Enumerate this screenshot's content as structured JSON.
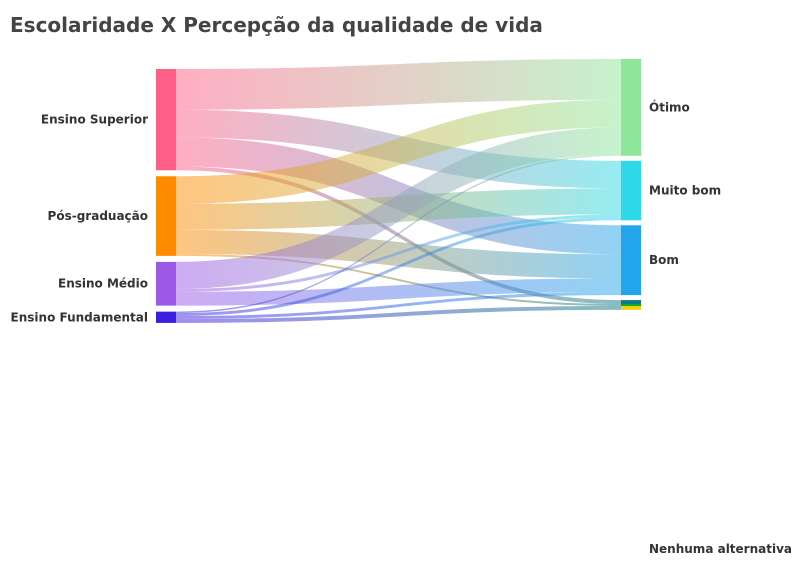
{
  "chart_data": {
    "type": "sankey",
    "title": "Escolaridade X Percepção da qualidade de vida",
    "sources": [
      {
        "name": "Ensino Superior",
        "color": "#FF5E86"
      },
      {
        "name": "Pós-graduação",
        "color": "#FF8C00"
      },
      {
        "name": "Ensino Médio",
        "color": "#9B59E6"
      },
      {
        "name": "Ensino Fundamental",
        "color": "#3A1FE0"
      }
    ],
    "targets": [
      {
        "name": "Ótimo",
        "color": "#8EE69A"
      },
      {
        "name": "Muito bom",
        "color": "#2ED8E6"
      },
      {
        "name": "Bom",
        "color": "#22A5EA"
      },
      {
        "name": "Nenhuma alternativa",
        "colors": [
          "#0F7A85",
          "#12A520",
          "#F2D015"
        ]
      }
    ],
    "links": [
      {
        "source": "Ensino Superior",
        "target": "Ótimo",
        "value": 83
      },
      {
        "source": "Ensino Superior",
        "target": "Muito bom",
        "value": 56
      },
      {
        "source": "Ensino Superior",
        "target": "Bom",
        "value": 59
      },
      {
        "source": "Ensino Superior",
        "target": "Nenhuma alternativa",
        "value": 8
      },
      {
        "source": "Pós-graduação",
        "target": "Ótimo",
        "value": 56
      },
      {
        "source": "Pós-graduação",
        "target": "Muito bom",
        "value": 53
      },
      {
        "source": "Pós-graduação",
        "target": "Bom",
        "value": 49
      },
      {
        "source": "Pós-graduação",
        "target": "Nenhuma alternativa",
        "value": 4
      },
      {
        "source": "Ensino Médio",
        "target": "Ótimo",
        "value": 55
      },
      {
        "source": "Ensino Médio",
        "target": "Muito bom",
        "value": 6
      },
      {
        "source": "Ensino Médio",
        "target": "Bom",
        "value": 28
      },
      {
        "source": "Ensino Fundamental",
        "target": "Ótimo",
        "value": 3
      },
      {
        "source": "Ensino Fundamental",
        "target": "Muito bom",
        "value": 6
      },
      {
        "source": "Ensino Fundamental",
        "target": "Bom",
        "value": 6
      },
      {
        "source": "Ensino Fundamental",
        "target": "Nenhuma alternativa",
        "value": 8
      }
    ]
  }
}
